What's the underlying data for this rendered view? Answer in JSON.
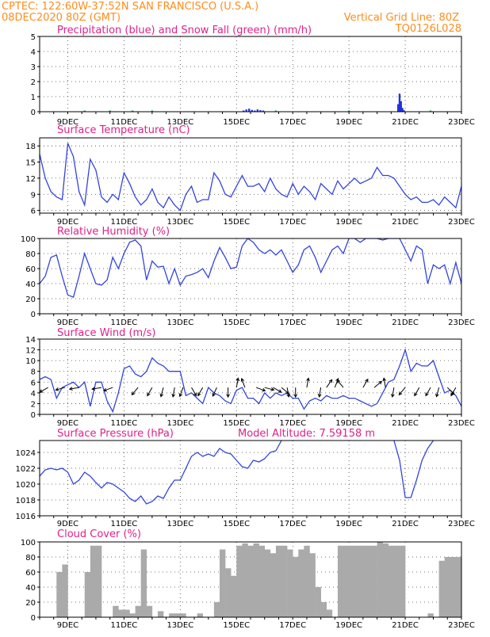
{
  "header": {
    "left1": "CPTEC:   122:60W-37:52N  SAN FRANCISCO (U.S.A.)",
    "left2": "08DEC2020 80Z (GMT)",
    "right1": "Vertical Grid Line: 80Z",
    "right2": "TQ0126L028"
  },
  "colors": {
    "header": "#ff8c1a",
    "titles": "#e0218a",
    "series": "#3344dd",
    "cloud": "#aaaaaa",
    "snow": "#22aa44"
  },
  "x_labels": [
    "9DEC",
    "11DEC",
    "13DEC",
    "15DEC",
    "17DEC",
    "19DEC",
    "21DEC",
    "23DEC"
  ],
  "chart_data": [
    {
      "type": "bar",
      "title": "Precipitation (blue) and Snow Fall (green) (mm/h)",
      "ylim": [
        0,
        5
      ],
      "yticks": [
        0,
        1,
        2,
        3,
        4,
        5
      ],
      "x_range_days": [
        8.0,
        23.0
      ],
      "series": [
        {
          "name": "Precipitation",
          "points": [
            [
              15.25,
              0.08
            ],
            [
              15.35,
              0.15
            ],
            [
              15.45,
              0.2
            ],
            [
              15.55,
              0.12
            ],
            [
              15.65,
              0.08
            ],
            [
              15.75,
              0.15
            ],
            [
              15.85,
              0.1
            ],
            [
              15.95,
              0.05
            ],
            [
              20.75,
              0.5
            ],
            [
              20.8,
              1.2
            ],
            [
              20.85,
              0.7
            ],
            [
              20.9,
              0.25
            ],
            [
              20.95,
              0.1
            ]
          ]
        },
        {
          "name": "Snow Fall",
          "points": [
            [
              9.6,
              0.02
            ],
            [
              10.5,
              0.02
            ],
            [
              11.3,
              0.02
            ],
            [
              12.0,
              0.02
            ],
            [
              16.4,
              0.02
            ],
            [
              19.0,
              0.02
            ],
            [
              21.9,
              0.02
            ]
          ]
        }
      ]
    },
    {
      "type": "line",
      "title": "Surface Temperature (nC)",
      "ylim": [
        5.5,
        19.5
      ],
      "yticks": [
        6,
        9,
        12,
        15,
        18
      ],
      "x_range_days": [
        8.0,
        23.0
      ],
      "x": [
        8.0,
        8.2,
        8.4,
        8.6,
        8.8,
        9.0,
        9.2,
        9.4,
        9.6,
        9.8,
        10.0,
        10.2,
        10.4,
        10.6,
        10.8,
        11.0,
        11.2,
        11.4,
        11.6,
        11.8,
        12.0,
        12.2,
        12.4,
        12.6,
        12.8,
        13.0,
        13.2,
        13.4,
        13.6,
        13.8,
        14.0,
        14.2,
        14.4,
        14.6,
        14.8,
        15.0,
        15.2,
        15.4,
        15.6,
        15.8,
        16.0,
        16.2,
        16.4,
        16.6,
        16.8,
        17.0,
        17.2,
        17.4,
        17.6,
        17.8,
        18.0,
        18.2,
        18.4,
        18.6,
        18.8,
        19.0,
        19.2,
        19.4,
        19.6,
        19.8,
        20.0,
        20.2,
        20.4,
        20.6,
        20.8,
        21.0,
        21.2,
        21.4,
        21.6,
        21.8,
        22.0,
        22.2,
        22.4,
        22.6,
        22.8,
        23.0
      ],
      "values": [
        16.5,
        12,
        9.5,
        8.5,
        8,
        18.5,
        16,
        9.5,
        7,
        15.5,
        13.5,
        8.5,
        7.5,
        9,
        8,
        13,
        11,
        8.5,
        7,
        8,
        10,
        7.5,
        6.5,
        8.5,
        7,
        6,
        9,
        10.5,
        7.5,
        8,
        8,
        13,
        11.5,
        9,
        8.5,
        10.5,
        12.5,
        10.5,
        10.5,
        11,
        9.5,
        12,
        10,
        9,
        8.5,
        11,
        9,
        10.5,
        9.5,
        8,
        11,
        10,
        9,
        11.5,
        10,
        11,
        12,
        11,
        11.5,
        12,
        14,
        12.5,
        12.5,
        12,
        10.5,
        9,
        8,
        8.5,
        7.5,
        7.5,
        8,
        7,
        8.5,
        7.5,
        6.5,
        10.5
      ]
    },
    {
      "type": "line",
      "title": "Relative Humidity (%)",
      "ylim": [
        0,
        100
      ],
      "yticks": [
        0,
        20,
        40,
        60,
        80,
        100
      ],
      "x_range_days": [
        8.0,
        23.0
      ],
      "x": [
        8.0,
        8.2,
        8.4,
        8.6,
        8.8,
        9.0,
        9.2,
        9.4,
        9.6,
        9.8,
        10.0,
        10.2,
        10.4,
        10.6,
        10.8,
        11.0,
        11.2,
        11.4,
        11.6,
        11.8,
        12.0,
        12.2,
        12.4,
        12.6,
        12.8,
        13.0,
        13.2,
        13.4,
        13.6,
        13.8,
        14.0,
        14.2,
        14.4,
        14.6,
        14.8,
        15.0,
        15.2,
        15.4,
        15.6,
        15.8,
        16.0,
        16.2,
        16.4,
        16.6,
        16.8,
        17.0,
        17.2,
        17.4,
        17.6,
        17.8,
        18.0,
        18.2,
        18.4,
        18.6,
        18.8,
        19.0,
        19.2,
        19.4,
        19.6,
        19.8,
        20.0,
        20.2,
        20.4,
        20.6,
        20.8,
        21.0,
        21.2,
        21.4,
        21.6,
        21.8,
        22.0,
        22.2,
        22.4,
        22.6,
        22.8,
        23.0
      ],
      "values": [
        40,
        50,
        75,
        78,
        50,
        25,
        22,
        50,
        80,
        60,
        40,
        38,
        45,
        75,
        60,
        80,
        95,
        98,
        90,
        45,
        70,
        62,
        63,
        40,
        60,
        38,
        50,
        52,
        55,
        60,
        48,
        70,
        88,
        75,
        60,
        62,
        90,
        100,
        95,
        85,
        80,
        85,
        78,
        85,
        70,
        55,
        65,
        85,
        90,
        75,
        55,
        70,
        85,
        90,
        80,
        100,
        100,
        95,
        100,
        100,
        100,
        98,
        100,
        100,
        100,
        85,
        70,
        90,
        85,
        40,
        65,
        60,
        65,
        40,
        68,
        40
      ]
    },
    {
      "type": "line",
      "title": "Surface Wind (m/s)",
      "ylim": [
        0,
        14
      ],
      "yticks": [
        0,
        2,
        4,
        6,
        8,
        10,
        12,
        14
      ],
      "x_range_days": [
        8.0,
        23.0
      ],
      "x": [
        8.0,
        8.2,
        8.4,
        8.6,
        8.8,
        9.0,
        9.2,
        9.4,
        9.6,
        9.8,
        10.0,
        10.2,
        10.4,
        10.6,
        10.8,
        11.0,
        11.2,
        11.4,
        11.6,
        11.8,
        12.0,
        12.2,
        12.4,
        12.6,
        12.8,
        13.0,
        13.2,
        13.4,
        13.6,
        13.8,
        14.0,
        14.2,
        14.4,
        14.6,
        14.8,
        15.0,
        15.2,
        15.4,
        15.6,
        15.8,
        16.0,
        16.2,
        16.4,
        16.6,
        16.8,
        17.0,
        17.2,
        17.4,
        17.6,
        17.8,
        18.0,
        18.2,
        18.4,
        18.6,
        18.8,
        19.0,
        19.2,
        19.4,
        19.6,
        19.8,
        20.0,
        20.2,
        20.4,
        20.6,
        20.8,
        21.0,
        21.2,
        21.4,
        21.6,
        21.8,
        22.0,
        22.2,
        22.4,
        22.6,
        22.8,
        23.0
      ],
      "values": [
        6.5,
        7,
        6.5,
        3,
        5,
        5.5,
        6,
        5,
        6,
        1.5,
        6,
        6,
        2.5,
        0.5,
        4,
        8.5,
        9,
        7.5,
        7,
        8,
        10.5,
        9.5,
        9,
        8,
        8,
        8,
        3.5,
        4,
        3,
        2,
        5,
        4,
        3.5,
        2.5,
        2,
        4.5,
        5,
        3,
        3,
        2,
        4,
        3,
        4,
        3.5,
        4,
        3,
        3,
        1,
        2.5,
        3,
        2.5,
        3.5,
        3,
        3,
        3.5,
        3,
        3,
        2.5,
        2,
        1.5,
        2,
        4,
        6,
        6.5,
        9,
        12,
        8,
        9.5,
        9,
        9,
        10,
        7,
        4,
        4.5,
        3.5,
        1.5
      ],
      "vectors": [
        [
          8.3,
          -150
        ],
        [
          8.9,
          -165
        ],
        [
          9.4,
          -170
        ],
        [
          10.2,
          -170
        ],
        [
          10.6,
          -160
        ],
        [
          11.5,
          -130
        ],
        [
          12.0,
          -120
        ],
        [
          12.4,
          -105
        ],
        [
          12.8,
          -100
        ],
        [
          13.1,
          -110
        ],
        [
          13.4,
          -60
        ],
        [
          13.8,
          -120
        ],
        [
          14.3,
          -115
        ],
        [
          14.7,
          -90
        ],
        [
          15.0,
          80
        ],
        [
          15.3,
          110
        ],
        [
          15.7,
          -20
        ],
        [
          16.0,
          -15
        ],
        [
          16.3,
          -30
        ],
        [
          16.6,
          -40
        ],
        [
          16.8,
          -80
        ],
        [
          17.1,
          -90
        ],
        [
          17.5,
          80
        ],
        [
          18.0,
          -100
        ],
        [
          18.2,
          55
        ],
        [
          18.5,
          70
        ],
        [
          18.8,
          130
        ],
        [
          19.5,
          60
        ],
        [
          19.9,
          40
        ],
        [
          20.3,
          100
        ],
        [
          20.6,
          -100
        ],
        [
          21.0,
          -130
        ],
        [
          21.5,
          -120
        ],
        [
          21.9,
          -120
        ],
        [
          22.2,
          -105
        ],
        [
          22.5,
          -45
        ],
        [
          22.8,
          -120
        ]
      ]
    },
    {
      "type": "line",
      "title": "Surface Pressure (hPa)",
      "annotation": "Model Altitude: 7.59158 m",
      "ylim": [
        1016,
        1025.5
      ],
      "yticks": [
        1016,
        1018,
        1020,
        1022,
        1024
      ],
      "x_range_days": [
        8.0,
        23.0
      ],
      "segments": [
        {
          "x": [
            8.0,
            8.2,
            8.4,
            8.6,
            8.8,
            9.0,
            9.2,
            9.4,
            9.6,
            9.8,
            10.0,
            10.2,
            10.4,
            10.6,
            10.8,
            11.0,
            11.2,
            11.4,
            11.6,
            11.8,
            12.0,
            12.2,
            12.4,
            12.6,
            12.8,
            13.0,
            13.2,
            13.4,
            13.6,
            13.8,
            14.0,
            14.2,
            14.4,
            14.6,
            14.8,
            15.0,
            15.2,
            15.4,
            15.6,
            15.8,
            16.0,
            16.2,
            16.4,
            16.6
          ],
          "values": [
            1021,
            1021.8,
            1022,
            1021.8,
            1022,
            1021.5,
            1020,
            1020.5,
            1021.5,
            1021,
            1020.2,
            1019.5,
            1020.2,
            1020,
            1019.5,
            1019,
            1018.2,
            1017.8,
            1018.5,
            1017.5,
            1017.8,
            1018.5,
            1018.2,
            1019.5,
            1020.5,
            1020.5,
            1022,
            1023.5,
            1024,
            1023.5,
            1023.8,
            1023.5,
            1024.5,
            1024,
            1023.8,
            1023,
            1022.2,
            1022,
            1023,
            1022.8,
            1023.2,
            1024,
            1024.2,
            1025.5
          ]
        },
        {
          "x": [
            20.6,
            20.8,
            21.0,
            21.2,
            21.4,
            21.6,
            21.8,
            22.0
          ],
          "values": [
            1025.5,
            1023,
            1018.3,
            1018.3,
            1020.5,
            1023,
            1024.5,
            1025.5
          ]
        }
      ]
    },
    {
      "type": "bar",
      "title": "Cloud Cover (%)",
      "ylim": [
        0,
        100
      ],
      "yticks": [
        0,
        20,
        40,
        60,
        80,
        100
      ],
      "x_range_days": [
        8.0,
        23.0
      ],
      "x": [
        8.0,
        8.2,
        8.4,
        8.6,
        8.8,
        9.0,
        9.2,
        9.4,
        9.6,
        9.8,
        10.0,
        10.2,
        10.4,
        10.6,
        10.8,
        11.0,
        11.2,
        11.4,
        11.6,
        11.8,
        12.0,
        12.2,
        12.4,
        12.6,
        12.8,
        13.0,
        13.2,
        13.4,
        13.6,
        13.8,
        14.0,
        14.2,
        14.4,
        14.6,
        14.8,
        15.0,
        15.2,
        15.4,
        15.6,
        15.8,
        16.0,
        16.2,
        16.4,
        16.6,
        16.8,
        17.0,
        17.2,
        17.4,
        17.6,
        17.8,
        18.0,
        18.2,
        18.4,
        18.6,
        18.8,
        19.0,
        19.2,
        19.4,
        19.6,
        19.8,
        20.0,
        20.2,
        20.4,
        20.6,
        20.8,
        21.0,
        21.2,
        21.4,
        21.6,
        21.8,
        22.0,
        22.2,
        22.4,
        22.6,
        22.8
      ],
      "values": [
        0,
        0,
        0,
        60,
        70,
        0,
        0,
        0,
        60,
        95,
        95,
        0,
        0,
        15,
        10,
        10,
        5,
        15,
        90,
        15,
        0,
        8,
        0,
        5,
        5,
        5,
        0,
        0,
        5,
        0,
        0,
        20,
        90,
        65,
        55,
        95,
        98,
        95,
        98,
        95,
        90,
        85,
        95,
        95,
        90,
        80,
        90,
        95,
        85,
        40,
        20,
        10,
        0,
        95,
        95,
        95,
        95,
        95,
        95,
        95,
        100,
        98,
        95,
        95,
        95,
        0,
        0,
        0,
        0,
        5,
        0,
        75,
        80,
        80,
        80
      ]
    }
  ]
}
